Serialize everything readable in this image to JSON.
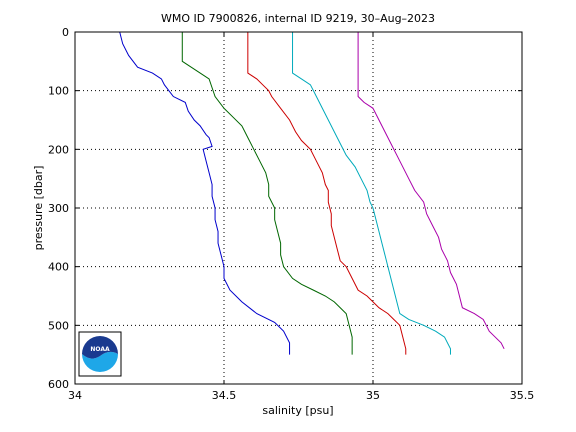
{
  "chart_data": {
    "type": "line",
    "title": "WMO ID 7900826, internal ID 9219, 30–Aug–2023",
    "xlabel": "salinity [psu]",
    "ylabel": "pressure [dbar]",
    "xlim": [
      34,
      35.5
    ],
    "ylim": [
      0,
      600
    ],
    "y_reversed": true,
    "grid": true,
    "x_ticks": [
      "34",
      "34.5",
      "35",
      "35.5"
    ],
    "y_ticks": [
      "0",
      "100",
      "200",
      "300",
      "400",
      "500",
      "600"
    ],
    "series": [
      {
        "color": "#0000cc",
        "points": [
          [
            34.15,
            0
          ],
          [
            34.16,
            20
          ],
          [
            34.18,
            40
          ],
          [
            34.21,
            60
          ],
          [
            34.26,
            70
          ],
          [
            34.29,
            80
          ],
          [
            34.3,
            90
          ],
          [
            34.33,
            110
          ],
          [
            34.37,
            120
          ],
          [
            34.38,
            135
          ],
          [
            34.4,
            150
          ],
          [
            34.42,
            160
          ],
          [
            34.44,
            175
          ],
          [
            34.45,
            180
          ],
          [
            34.46,
            195
          ],
          [
            34.43,
            200
          ],
          [
            34.44,
            220
          ],
          [
            34.45,
            240
          ],
          [
            34.46,
            260
          ],
          [
            34.46,
            280
          ],
          [
            34.47,
            300
          ],
          [
            34.47,
            320
          ],
          [
            34.48,
            340
          ],
          [
            34.48,
            360
          ],
          [
            34.49,
            380
          ],
          [
            34.5,
            400
          ],
          [
            34.5,
            420
          ],
          [
            34.52,
            440
          ],
          [
            34.56,
            460
          ],
          [
            34.61,
            480
          ],
          [
            34.67,
            495
          ],
          [
            34.7,
            510
          ],
          [
            34.72,
            530
          ],
          [
            34.72,
            550
          ]
        ]
      },
      {
        "color": "#006600",
        "points": [
          [
            34.36,
            0
          ],
          [
            34.36,
            30
          ],
          [
            34.36,
            50
          ],
          [
            34.39,
            60
          ],
          [
            34.42,
            70
          ],
          [
            34.45,
            80
          ],
          [
            34.46,
            95
          ],
          [
            34.47,
            110
          ],
          [
            34.5,
            130
          ],
          [
            34.53,
            145
          ],
          [
            34.56,
            160
          ],
          [
            34.58,
            180
          ],
          [
            34.6,
            200
          ],
          [
            34.62,
            220
          ],
          [
            34.64,
            240
          ],
          [
            34.65,
            260
          ],
          [
            34.65,
            280
          ],
          [
            34.67,
            300
          ],
          [
            34.67,
            320
          ],
          [
            34.68,
            340
          ],
          [
            34.69,
            360
          ],
          [
            34.69,
            380
          ],
          [
            34.7,
            400
          ],
          [
            34.73,
            420
          ],
          [
            34.76,
            430
          ],
          [
            34.8,
            440
          ],
          [
            34.84,
            450
          ],
          [
            34.87,
            460
          ],
          [
            34.89,
            470
          ],
          [
            34.91,
            480
          ],
          [
            34.92,
            500
          ],
          [
            34.93,
            520
          ],
          [
            34.93,
            550
          ]
        ]
      },
      {
        "color": "#cc0000",
        "points": [
          [
            34.58,
            0
          ],
          [
            34.58,
            30
          ],
          [
            34.58,
            70
          ],
          [
            34.61,
            80
          ],
          [
            34.63,
            90
          ],
          [
            34.65,
            100
          ],
          [
            34.66,
            110
          ],
          [
            34.69,
            130
          ],
          [
            34.72,
            150
          ],
          [
            34.74,
            170
          ],
          [
            34.76,
            185
          ],
          [
            34.79,
            200
          ],
          [
            34.81,
            220
          ],
          [
            34.83,
            240
          ],
          [
            34.84,
            260
          ],
          [
            34.85,
            270
          ],
          [
            34.85,
            290
          ],
          [
            34.86,
            310
          ],
          [
            34.86,
            330
          ],
          [
            34.87,
            350
          ],
          [
            34.88,
            370
          ],
          [
            34.89,
            390
          ],
          [
            34.91,
            400
          ],
          [
            34.92,
            410
          ],
          [
            34.93,
            420
          ],
          [
            34.95,
            440
          ],
          [
            34.98,
            450
          ],
          [
            35.0,
            460
          ],
          [
            35.02,
            470
          ],
          [
            35.05,
            480
          ],
          [
            35.07,
            490
          ],
          [
            35.09,
            500
          ],
          [
            35.1,
            520
          ],
          [
            35.11,
            540
          ],
          [
            35.11,
            550
          ]
        ]
      },
      {
        "color": "#00aabb",
        "points": [
          [
            34.73,
            0
          ],
          [
            34.73,
            40
          ],
          [
            34.73,
            70
          ],
          [
            34.76,
            80
          ],
          [
            34.79,
            90
          ],
          [
            34.81,
            110
          ],
          [
            34.83,
            130
          ],
          [
            34.85,
            150
          ],
          [
            34.87,
            170
          ],
          [
            34.89,
            190
          ],
          [
            34.91,
            210
          ],
          [
            34.94,
            230
          ],
          [
            34.96,
            250
          ],
          [
            34.98,
            270
          ],
          [
            34.99,
            290
          ],
          [
            35.0,
            300
          ],
          [
            35.01,
            320
          ],
          [
            35.02,
            340
          ],
          [
            35.03,
            360
          ],
          [
            35.04,
            380
          ],
          [
            35.05,
            400
          ],
          [
            35.06,
            420
          ],
          [
            35.07,
            440
          ],
          [
            35.08,
            460
          ],
          [
            35.09,
            480
          ],
          [
            35.12,
            490
          ],
          [
            35.17,
            500
          ],
          [
            35.21,
            510
          ],
          [
            35.24,
            520
          ],
          [
            35.26,
            540
          ],
          [
            35.26,
            550
          ]
        ]
      },
      {
        "color": "#aa00aa",
        "points": [
          [
            34.95,
            0
          ],
          [
            34.95,
            40
          ],
          [
            34.95,
            110
          ],
          [
            34.97,
            120
          ],
          [
            35.0,
            130
          ],
          [
            35.02,
            150
          ],
          [
            35.04,
            170
          ],
          [
            35.06,
            190
          ],
          [
            35.08,
            210
          ],
          [
            35.1,
            230
          ],
          [
            35.12,
            250
          ],
          [
            35.14,
            270
          ],
          [
            35.17,
            290
          ],
          [
            35.18,
            310
          ],
          [
            35.2,
            330
          ],
          [
            35.22,
            350
          ],
          [
            35.23,
            370
          ],
          [
            35.24,
            380
          ],
          [
            35.25,
            390
          ],
          [
            35.26,
            410
          ],
          [
            35.28,
            430
          ],
          [
            35.29,
            450
          ],
          [
            35.3,
            470
          ],
          [
            35.34,
            480
          ],
          [
            35.37,
            490
          ],
          [
            35.38,
            500
          ],
          [
            35.39,
            510
          ],
          [
            35.41,
            520
          ],
          [
            35.43,
            530
          ],
          [
            35.44,
            540
          ]
        ]
      }
    ]
  },
  "logo": {
    "text": "NOAA",
    "colors": {
      "upper": "#1a3a8f",
      "lower": "#1ea7e8",
      "ring": "#ffffff"
    }
  }
}
